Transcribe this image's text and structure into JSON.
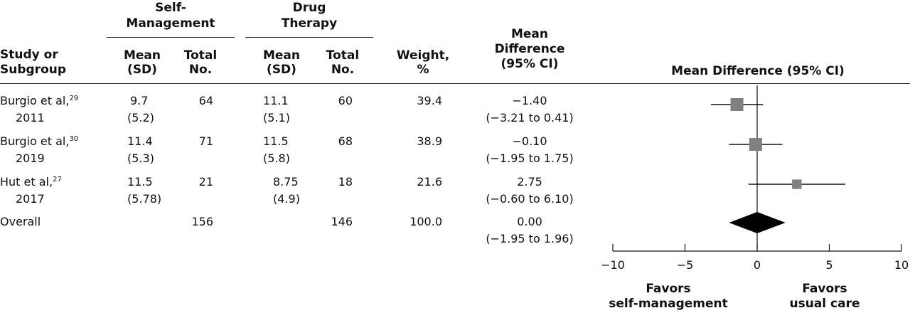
{
  "headers": {
    "self_management": "Self-\nManagement",
    "drug_therapy": "Drug\nTherapy",
    "study": "Study or\nSubgroup",
    "mean_sd": "Mean\n(SD)",
    "total_no": "Total\nNo.",
    "weight": "Weight,\n%",
    "mean_difference": "Mean\nDifference\n(95% CI)",
    "plot_title": "Mean Difference (95% CI)"
  },
  "rows": [
    {
      "study": "Burgio et al,",
      "ref": "29",
      "year": "2011",
      "sm_mean": "9.7",
      "sm_sd": "(5.2)",
      "sm_total": "64",
      "dt_mean": "11.1",
      "dt_sd": "(5.1)",
      "dt_total": "60",
      "weight": "39.4",
      "md": "−1.40",
      "ci": "(−3.21 to 0.41)"
    },
    {
      "study": "Burgio et al,",
      "ref": "30",
      "year": "2019",
      "sm_mean": "11.4",
      "sm_sd": "(5.3)",
      "sm_total": "71",
      "dt_mean": "11.5",
      "dt_sd": "(5.8)",
      "dt_total": "68",
      "weight": "38.9",
      "md": "−0.10",
      "ci": "(−1.95 to 1.75)"
    },
    {
      "study": "Hut et al,",
      "ref": "27",
      "year": "2017",
      "sm_mean": "11.5",
      "sm_sd": "(5.78)",
      "sm_total": "21",
      "dt_mean": "8.75",
      "dt_sd": "(4.9)",
      "dt_total": "18",
      "weight": "21.6",
      "md": "2.75",
      "ci": "(−0.60 to 6.10)"
    }
  ],
  "overall": {
    "label": "Overall",
    "sm_total": "156",
    "dt_total": "146",
    "weight": "100.0",
    "md": "0.00",
    "ci": "(−1.95 to 1.96)"
  },
  "chart_data": {
    "type": "forest",
    "title": "Mean Difference (95% CI)",
    "xlim": [
      -10,
      10
    ],
    "xticks": [
      -10,
      -5,
      0,
      5,
      10
    ],
    "tick_labels": [
      "−10",
      "−5",
      "0",
      "5",
      "10"
    ],
    "reference_line": 0,
    "studies": [
      {
        "label": "Burgio et al, 2011",
        "estimate": -1.4,
        "ci_low": -3.21,
        "ci_high": 0.41,
        "weight": 39.4
      },
      {
        "label": "Burgio et al, 2019",
        "estimate": -0.1,
        "ci_low": -1.95,
        "ci_high": 1.75,
        "weight": 38.9
      },
      {
        "label": "Hut et al, 2017",
        "estimate": 2.75,
        "ci_low": -0.6,
        "ci_high": 6.1,
        "weight": 21.6
      }
    ],
    "overall": {
      "estimate": 0.0,
      "ci_low": -1.95,
      "ci_high": 1.96
    },
    "favors_left": "Favors\nself-management",
    "favors_right": "Favors\nusual care",
    "marker_color": "#808080",
    "diamond_color": "#000000"
  }
}
